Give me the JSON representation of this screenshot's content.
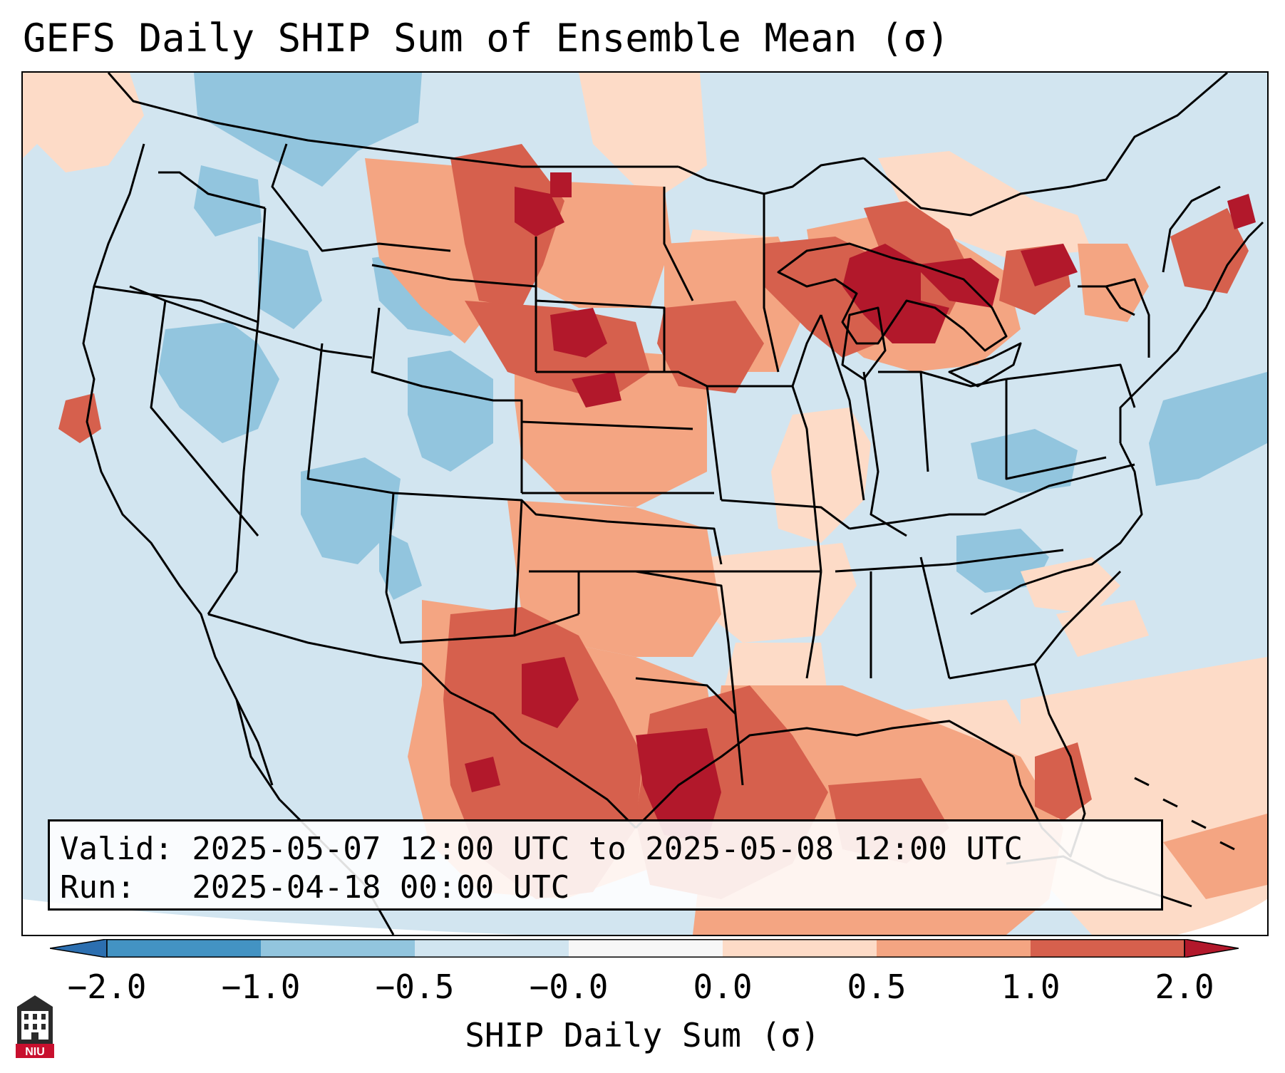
{
  "title": "GEFS Daily SHIP Sum of Ensemble Mean (σ)",
  "info": {
    "valid_line": "Valid: 2025-05-07 12:00 UTC to 2025-05-08 12:00 UTC",
    "run_line": "Run:   2025-04-18 00:00 UTC"
  },
  "colorbar": {
    "label": "SHIP Daily Sum (σ)",
    "ticks": [
      "−2.0",
      "−1.0",
      "−0.5",
      "−0.0",
      "0.0",
      "0.5",
      "1.0",
      "2.0"
    ],
    "colors": {
      "below_min": "#2c6fb0",
      "bin_-2_-1": "#4393c3",
      "bin_-1_-0.5": "#92c5de",
      "bin_-0.5_0": "#d1e5f0",
      "bin_0": "#f7f7f7",
      "bin_0_0.5": "#fddbc7",
      "bin_0.5_1": "#f4a582",
      "bin_1_2": "#d6604d",
      "above_max": "#b2182b"
    }
  },
  "logo": {
    "text": "NIU",
    "icon": "niu-seal-icon"
  }
}
